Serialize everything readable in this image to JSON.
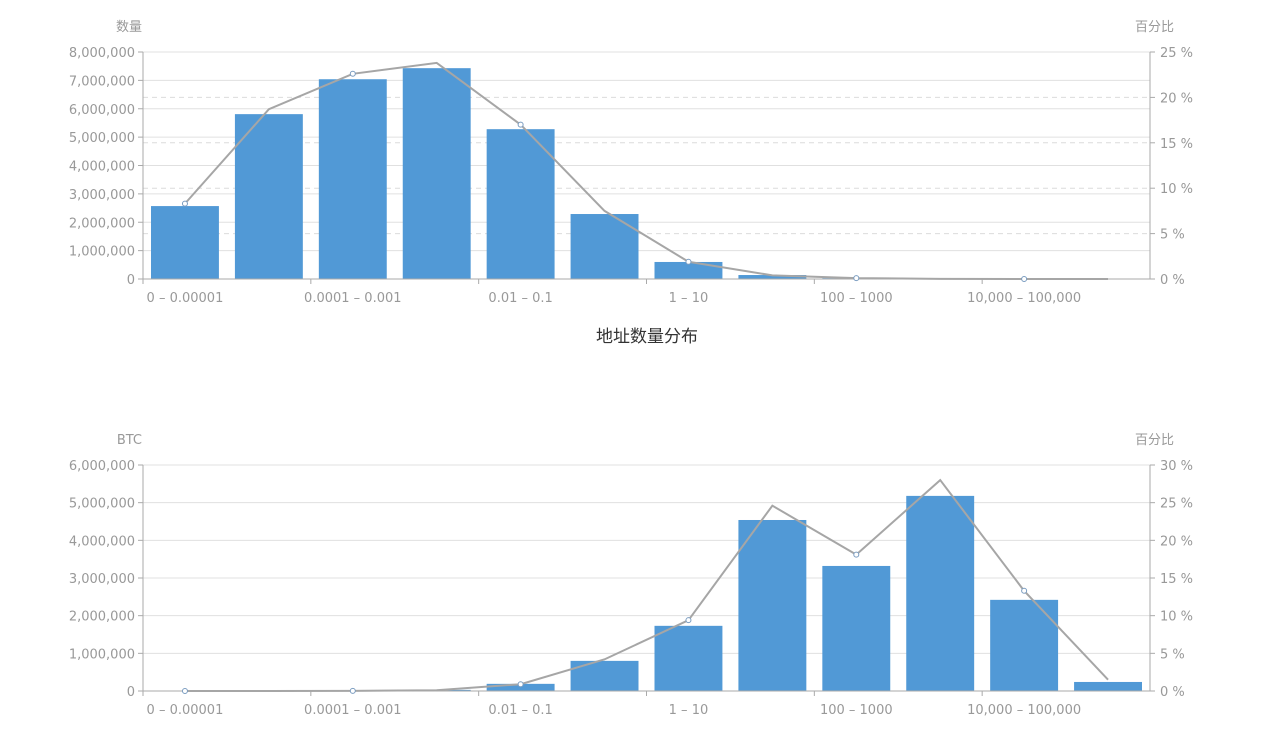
{
  "colors": {
    "bar": "#5199d6",
    "line": "#a6a6a6",
    "grid": "#e0e0e0",
    "axis": "#aaaaaa",
    "text": "#999999"
  },
  "chart_data": [
    {
      "type": "bar+line",
      "title": "地址数量分布",
      "ylabel_left": "数量",
      "ylabel_right": "百分比",
      "categories": [
        "0 – 0.00001",
        "",
        "0.0001 – 0.001",
        "",
        "0.01 – 0.1",
        "",
        "1 – 10",
        "",
        "100 – 1000",
        "",
        "10,000 – 100,000",
        ""
      ],
      "left_ylim": [
        0,
        8000000
      ],
      "left_ticks": [
        "0",
        "1,000,000",
        "2,000,000",
        "3,000,000",
        "4,000,000",
        "5,000,000",
        "6,000,000",
        "7,000,000",
        "8,000,000"
      ],
      "right_ylim": [
        0,
        25
      ],
      "right_ticks": [
        "0 %",
        "5 %",
        "10 %",
        "15 %",
        "20 %",
        "25 %"
      ],
      "bar_values": [
        2570000,
        5810000,
        7040000,
        7430000,
        5280000,
        2290000,
        600000,
        140000,
        30000,
        5000,
        1000,
        0
      ],
      "line_values": [
        8.3,
        18.7,
        22.6,
        23.8,
        17.0,
        7.5,
        1.9,
        0.4,
        0.1,
        0.02,
        0.0,
        0.0
      ],
      "grid": true
    },
    {
      "type": "bar+line",
      "title": "",
      "ylabel_left": "BTC",
      "ylabel_right": "百分比",
      "categories": [
        "0 – 0.00001",
        "",
        "0.0001 – 0.001",
        "",
        "0.01 – 0.1",
        "",
        "1 – 10",
        "",
        "100 – 1000",
        "",
        "10,000 – 100,000",
        ""
      ],
      "left_ylim": [
        0,
        6000000
      ],
      "left_ticks": [
        "0",
        "1,000,000",
        "2,000,000",
        "3,000,000",
        "4,000,000",
        "5,000,000",
        "6,000,000"
      ],
      "right_ylim": [
        0,
        30
      ],
      "right_ticks": [
        "0 %",
        "5 %",
        "10 %",
        "15 %",
        "20 %",
        "25 %",
        "30 %"
      ],
      "bar_values": [
        0,
        0,
        5000,
        30000,
        190000,
        800000,
        1730000,
        4540000,
        3320000,
        5180000,
        2420000,
        240000
      ],
      "line_values": [
        0.0,
        0.0,
        0.02,
        0.1,
        0.9,
        4.2,
        9.4,
        24.6,
        18.1,
        28.0,
        13.3,
        1.5
      ],
      "grid": true
    }
  ]
}
